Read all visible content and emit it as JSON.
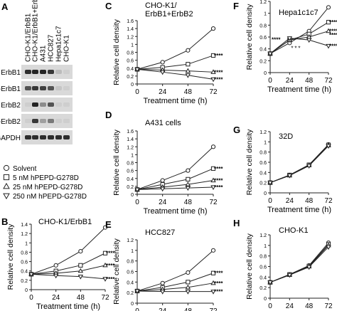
{
  "blot": {
    "panel_label": "A",
    "lanes": [
      "CHO-K1/ErbB1",
      "CHO-K1/ErbB1+ErbB2",
      "A431",
      "HCC827",
      "Hepa1c1c7",
      "CHO-K1"
    ],
    "rows": [
      "ErbB1",
      "p-ErbB1",
      "ErbB2",
      "p-ErbB2",
      "GAPDH"
    ]
  },
  "legend": {
    "items": [
      {
        "label": "Solvent",
        "marker": "circle"
      },
      {
        "label": "5 nM hPEPD-G278D",
        "marker": "square"
      },
      {
        "label": "25 nM hPEPD-G278D",
        "marker": "triangle-up"
      },
      {
        "label": "250 nM hPEPD-G278D",
        "marker": "triangle-down"
      }
    ]
  },
  "colors": {
    "line": "#222222",
    "marker_fill": "#ffffff",
    "band": "#1a1a1a",
    "blot_bg": "#d9d9d9"
  },
  "chart_data": [
    {
      "panel": "B",
      "type": "line",
      "title": "CHO-K1/ErbB1",
      "xlabel": "Treatment time (h)",
      "ylabel": "Relative cell density",
      "x": [
        0,
        24,
        48,
        72
      ],
      "xlim": [
        0,
        72
      ],
      "ylim": [
        0,
        1.4
      ],
      "yticks": [
        0,
        0.2,
        0.4,
        0.6,
        0.8,
        1,
        1.2,
        1.4
      ],
      "xticks": [
        0,
        24,
        48,
        72
      ],
      "series": [
        {
          "name": "Solvent",
          "values": [
            0.33,
            0.52,
            0.82,
            1.33
          ]
        },
        {
          "name": "5 nM hPEPD-G278D",
          "values": [
            0.33,
            0.4,
            0.52,
            0.78
          ]
        },
        {
          "name": "25 nM hPEPD-G278D",
          "values": [
            0.33,
            0.35,
            0.4,
            0.52
          ]
        },
        {
          "name": "250 nM hPEPD-G278D",
          "values": [
            0.33,
            0.3,
            0.28,
            0.23
          ]
        }
      ],
      "annotations": [
        "****",
        "****",
        "****"
      ]
    },
    {
      "panel": "C",
      "type": "line",
      "title": "CHO-K1/\nErbB1+ErbB2",
      "xlabel": "Treatment time (h)",
      "ylabel": "Relative cell density",
      "x": [
        0,
        24,
        48,
        72
      ],
      "xlim": [
        0,
        72
      ],
      "ylim": [
        0,
        1.6
      ],
      "yticks": [
        0,
        0.2,
        0.4,
        0.6,
        0.8,
        1,
        1.2,
        1.4,
        1.6
      ],
      "xticks": [
        0,
        24,
        48,
        72
      ],
      "series": [
        {
          "name": "Solvent",
          "values": [
            0.37,
            0.55,
            0.85,
            1.4
          ]
        },
        {
          "name": "5 nM hPEPD-G278D",
          "values": [
            0.37,
            0.42,
            0.5,
            0.72
          ]
        },
        {
          "name": "25 nM hPEPD-G278D",
          "values": [
            0.37,
            0.35,
            0.33,
            0.3
          ]
        },
        {
          "name": "250 nM hPEPD-G278D",
          "values": [
            0.37,
            0.3,
            0.22,
            0.12
          ]
        }
      ],
      "annotations": [
        "****",
        "****",
        "****"
      ]
    },
    {
      "panel": "D",
      "type": "line",
      "title": "A431 cells",
      "xlabel": "Treatment time (h)",
      "ylabel": "Relative cell density",
      "x": [
        0,
        24,
        48,
        72
      ],
      "xlim": [
        0,
        72
      ],
      "ylim": [
        0,
        1.6
      ],
      "yticks": [
        0,
        0.2,
        0.4,
        0.6,
        0.8,
        1,
        1.2,
        1.4,
        1.6
      ],
      "xticks": [
        0,
        24,
        48,
        72
      ],
      "series": [
        {
          "name": "Solvent",
          "values": [
            0.12,
            0.35,
            0.6,
            1.2
          ]
        },
        {
          "name": "5 nM hPEPD-G278D",
          "values": [
            0.12,
            0.25,
            0.38,
            0.65
          ]
        },
        {
          "name": "25 nM hPEPD-G278D",
          "values": [
            0.12,
            0.18,
            0.25,
            0.35
          ]
        },
        {
          "name": "250 nM hPEPD-G278D",
          "values": [
            0.12,
            0.14,
            0.16,
            0.18
          ]
        }
      ],
      "annotations": [
        "****",
        "****",
        "****"
      ]
    },
    {
      "panel": "E",
      "type": "line",
      "title": "HCC827",
      "xlabel": "Treatment time (h)",
      "ylabel": "Relative cell density",
      "x": [
        0,
        24,
        48,
        72
      ],
      "xlim": [
        0,
        72
      ],
      "ylim": [
        0,
        1.2
      ],
      "yticks": [
        0,
        0.2,
        0.4,
        0.6,
        0.8,
        1,
        1.2
      ],
      "xticks": [
        0,
        24,
        48,
        72
      ],
      "series": [
        {
          "name": "Solvent",
          "values": [
            0.23,
            0.38,
            0.58,
            1.0
          ]
        },
        {
          "name": "5 nM hPEPD-G278D",
          "values": [
            0.23,
            0.3,
            0.4,
            0.57
          ]
        },
        {
          "name": "25 nM hPEPD-G278D",
          "values": [
            0.23,
            0.26,
            0.3,
            0.38
          ]
        },
        {
          "name": "250 nM hPEPD-G278D",
          "values": [
            0.23,
            0.22,
            0.22,
            0.22
          ]
        }
      ],
      "annotations": [
        "****",
        "****",
        "****"
      ]
    },
    {
      "panel": "F",
      "type": "line",
      "title": "Hepa1c1c7",
      "xlabel": "Treatment time (h)",
      "ylabel": "Relative cell density",
      "x": [
        0,
        24,
        48,
        72
      ],
      "xlim": [
        0,
        72
      ],
      "ylim": [
        0,
        1.2
      ],
      "yticks": [
        0,
        0.2,
        0.4,
        0.6,
        0.8,
        1,
        1.2
      ],
      "xticks": [
        0,
        24,
        48,
        72
      ],
      "series": [
        {
          "name": "Solvent",
          "values": [
            0.32,
            0.5,
            0.7,
            1.1
          ]
        },
        {
          "name": "5 nM hPEPD-G278D",
          "values": [
            0.32,
            0.55,
            0.65,
            0.85
          ]
        },
        {
          "name": "25 nM hPEPD-G278D",
          "values": [
            0.32,
            0.55,
            0.6,
            0.7
          ]
        },
        {
          "name": "250 nM hPEPD-G278D",
          "values": [
            0.32,
            0.58,
            0.55,
            0.45
          ]
        }
      ],
      "annotations": [
        "****",
        "****",
        "****",
        "****",
        "****",
        "*",
        "*",
        "*"
      ]
    },
    {
      "panel": "G",
      "type": "line",
      "title": "32D",
      "xlabel": "Treatment time (h)",
      "ylabel": "Relative cell density",
      "x": [
        0,
        24,
        48,
        72
      ],
      "xlim": [
        0,
        72
      ],
      "ylim": [
        0,
        1.2
      ],
      "yticks": [
        0,
        0.2,
        0.4,
        0.6,
        0.8,
        1,
        1.2
      ],
      "xticks": [
        0,
        24,
        48,
        72
      ],
      "series": [
        {
          "name": "Solvent",
          "values": [
            0.2,
            0.35,
            0.55,
            0.95
          ]
        },
        {
          "name": "5 nM hPEPD-G278D",
          "values": [
            0.2,
            0.35,
            0.55,
            0.94
          ]
        },
        {
          "name": "25 nM hPEPD-G278D",
          "values": [
            0.2,
            0.34,
            0.54,
            0.93
          ]
        },
        {
          "name": "250 nM hPEPD-G278D",
          "values": [
            0.2,
            0.34,
            0.53,
            0.92
          ]
        }
      ],
      "annotations": []
    },
    {
      "panel": "H",
      "type": "line",
      "title": "CHO-K1",
      "xlabel": "Treatment time (h)",
      "ylabel": "Relative cell density",
      "x": [
        0,
        24,
        48,
        72
      ],
      "xlim": [
        0,
        72
      ],
      "ylim": [
        0,
        1.2
      ],
      "yticks": [
        0,
        0.2,
        0.4,
        0.6,
        0.8,
        1,
        1.2
      ],
      "xticks": [
        0,
        24,
        48,
        72
      ],
      "series": [
        {
          "name": "Solvent",
          "values": [
            0.3,
            0.45,
            0.62,
            1.05
          ]
        },
        {
          "name": "5 nM hPEPD-G278D",
          "values": [
            0.3,
            0.45,
            0.61,
            1.02
          ]
        },
        {
          "name": "25 nM hPEPD-G278D",
          "values": [
            0.3,
            0.44,
            0.6,
            1.0
          ]
        },
        {
          "name": "250 nM hPEPD-G278D",
          "values": [
            0.3,
            0.44,
            0.59,
            0.97
          ]
        }
      ],
      "annotations": []
    }
  ]
}
